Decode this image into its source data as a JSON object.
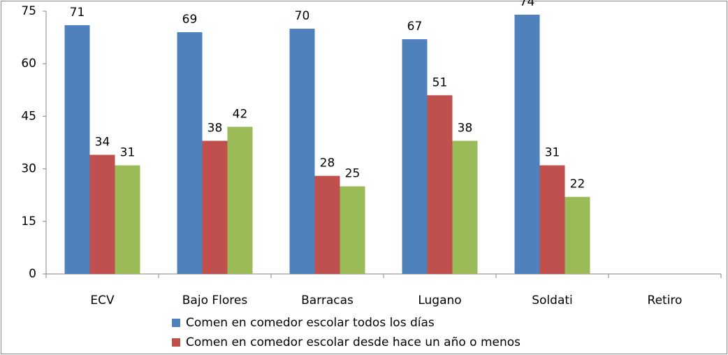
{
  "chart_data": {
    "type": "bar",
    "categories": [
      "ECV",
      "Bajo Flores",
      "Barracas",
      "Lugano",
      "Soldati",
      "Retiro"
    ],
    "series": [
      {
        "name": "Comen en comedor escolar todos los días",
        "color": "#4f81bd",
        "values": [
          71,
          69,
          70,
          67,
          74,
          null
        ]
      },
      {
        "name": "Comen en comedor escolar desde hace un año o menos",
        "color": "#c0504d",
        "values": [
          34,
          38,
          28,
          51,
          31,
          null
        ]
      },
      {
        "color": "#9bbb59",
        "values": [
          31,
          42,
          25,
          38,
          22,
          null
        ]
      }
    ],
    "ylim": [
      0,
      75
    ],
    "yticks": [
      0,
      15,
      30,
      45,
      60,
      75
    ],
    "grid": false
  }
}
